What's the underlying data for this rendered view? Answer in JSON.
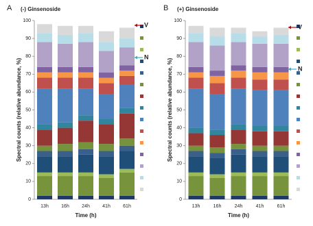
{
  "chart_data": [
    {
      "type": "bar",
      "stacked": true,
      "panel_label": "A",
      "title": "(-) Ginsenoside",
      "ylabel": "Spectral counts (relative abundance, %)",
      "xlabel": "Time (h)",
      "annotations": [
        "V",
        "N"
      ],
      "categories": [
        "13h",
        "16h",
        "24h",
        "41h",
        "61h"
      ],
      "ylim": [
        0,
        100
      ],
      "yticks": [
        0,
        10,
        20,
        30,
        40,
        50,
        60,
        70,
        80,
        90,
        100
      ],
      "series": [
        {
          "color": "#1f3864",
          "values": [
            2,
            2,
            2,
            2,
            2
          ]
        },
        {
          "color": "#77933c",
          "values": [
            11,
            11,
            11,
            10,
            13
          ]
        },
        {
          "color": "#9bbb59",
          "values": [
            2,
            2,
            2,
            2,
            2
          ]
        },
        {
          "color": "#1f4e79",
          "values": [
            9,
            9,
            10,
            10,
            10
          ]
        },
        {
          "color": "#3a5f8a",
          "values": [
            3,
            3,
            3,
            3,
            3
          ]
        },
        {
          "color": "#76923c",
          "values": [
            3,
            4,
            4,
            4,
            4
          ]
        },
        {
          "color": "#953735",
          "values": [
            9,
            9,
            12,
            11,
            14
          ]
        },
        {
          "color": "#31859c",
          "values": [
            3,
            3,
            3,
            3,
            3
          ]
        },
        {
          "color": "#4f81bd",
          "values": [
            20,
            19,
            15,
            14,
            13
          ]
        },
        {
          "color": "#c0504d",
          "values": [
            6,
            6,
            6,
            6,
            5
          ]
        },
        {
          "color": "#f79646",
          "values": [
            3,
            3,
            3,
            3,
            3
          ]
        },
        {
          "color": "#8064a2",
          "values": [
            3,
            3,
            3,
            3,
            3
          ]
        },
        {
          "color": "#b3a2c7",
          "values": [
            14,
            13,
            14,
            12,
            10
          ]
        },
        {
          "color": "#b7dee8",
          "values": [
            5,
            5,
            5,
            5,
            5
          ]
        },
        {
          "color": "#d9d9d9",
          "values": [
            5,
            5,
            4,
            6,
            6
          ]
        }
      ]
    },
    {
      "type": "bar",
      "stacked": true,
      "panel_label": "B",
      "title": "(+) Ginsenoside",
      "ylabel": "Spectral counts (relative abundance, %)",
      "xlabel": "Time (h)",
      "annotations": [
        "V",
        "N"
      ],
      "categories": [
        "13h",
        "16h",
        "24h",
        "41h",
        "61h"
      ],
      "ylim": [
        0,
        100
      ],
      "yticks": [
        0,
        10,
        20,
        30,
        40,
        50,
        60,
        70,
        80,
        90,
        100
      ],
      "series": [
        {
          "color": "#1f3864",
          "values": [
            2,
            2,
            2,
            2,
            2
          ]
        },
        {
          "color": "#77933c",
          "values": [
            11,
            10,
            11,
            11,
            11
          ]
        },
        {
          "color": "#9bbb59",
          "values": [
            2,
            2,
            2,
            2,
            2
          ]
        },
        {
          "color": "#1f4e79",
          "values": [
            9,
            9,
            10,
            9,
            9
          ]
        },
        {
          "color": "#3a5f8a",
          "values": [
            3,
            3,
            3,
            3,
            3
          ]
        },
        {
          "color": "#76923c",
          "values": [
            3,
            3,
            3,
            3,
            3
          ]
        },
        {
          "color": "#953735",
          "values": [
            7,
            7,
            8,
            8,
            8
          ]
        },
        {
          "color": "#31859c",
          "values": [
            3,
            3,
            3,
            3,
            3
          ]
        },
        {
          "color": "#4f81bd",
          "values": [
            22,
            20,
            20,
            20,
            20
          ]
        },
        {
          "color": "#c0504d",
          "values": [
            6,
            6,
            6,
            6,
            6
          ]
        },
        {
          "color": "#f79646",
          "values": [
            3,
            4,
            4,
            4,
            4
          ]
        },
        {
          "color": "#8064a2",
          "values": [
            3,
            3,
            3,
            3,
            3
          ]
        },
        {
          "color": "#b3a2c7",
          "values": [
            14,
            14,
            13,
            13,
            13
          ]
        },
        {
          "color": "#b7dee8",
          "values": [
            5,
            5,
            5,
            4,
            5
          ]
        },
        {
          "color": "#d9d9d9",
          "values": [
            4,
            5,
            3,
            3,
            4
          ]
        }
      ]
    }
  ]
}
